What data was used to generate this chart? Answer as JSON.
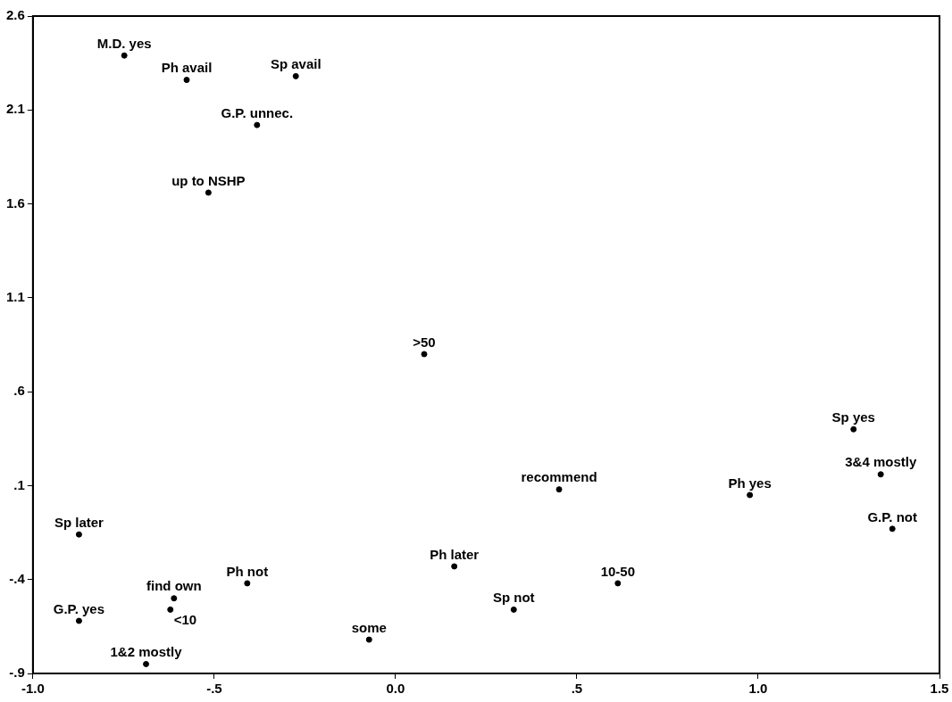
{
  "chart_data": {
    "type": "scatter",
    "color": "#000000",
    "marker": "circle",
    "grid": false,
    "legend": false,
    "x": [
      -0.748,
      -0.576,
      -0.275,
      -0.382,
      -0.516,
      0.079,
      1.263,
      1.338,
      0.451,
      0.977,
      1.37,
      -0.873,
      0.162,
      0.613,
      -0.409,
      0.326,
      -0.611,
      -0.621,
      -0.873,
      -0.073,
      -0.688
    ],
    "values": [
      2.39,
      2.26,
      2.28,
      2.02,
      1.66,
      0.8,
      0.4,
      0.16,
      0.08,
      0.05,
      -0.13,
      -0.16,
      -0.33,
      -0.42,
      -0.42,
      -0.56,
      -0.5,
      -0.56,
      -0.62,
      -0.72,
      -0.85
    ],
    "xlim": [
      -1.0,
      1.5
    ],
    "xticks": [
      {
        "value": -1.0,
        "label": "-1.0"
      },
      {
        "value": -0.5,
        "label": "-.5"
      },
      {
        "value": 0,
        "label": "0.0"
      },
      {
        "value": 0.5,
        "label": ".5"
      },
      {
        "value": 1.0,
        "label": "1.0"
      },
      {
        "value": 1.5,
        "label": "1.5"
      }
    ],
    "ylim": [
      -0.9,
      2.6
    ],
    "yticks": [
      {
        "value": -0.9,
        "label": "-.9"
      },
      {
        "value": -0.4,
        "label": "-.4"
      },
      {
        "value": 0.1,
        "label": ".1"
      },
      {
        "value": 0.6,
        "label": ".6"
      },
      {
        "value": 1.1,
        "label": "1.1"
      },
      {
        "value": 1.6,
        "label": "1.6"
      },
      {
        "value": 2.1,
        "label": "2.1"
      },
      {
        "value": 2.6,
        "label": "2.6"
      }
    ],
    "annotations": [
      {
        "text": "M.D. yes",
        "x": -0.748,
        "y": 2.39
      },
      {
        "text": "Ph avail",
        "x": -0.576,
        "y": 2.26
      },
      {
        "text": "Sp avail",
        "x": -0.275,
        "y": 2.28
      },
      {
        "text": "G.P. unnec.",
        "x": -0.382,
        "y": 2.02
      },
      {
        "text": "up to NSHP",
        "x": -0.516,
        "y": 1.66
      },
      {
        "text": ">50",
        "x": 0.079,
        "y": 0.8
      },
      {
        "text": "Sp yes",
        "x": 1.263,
        "y": 0.4
      },
      {
        "text": "3&4 mostly",
        "x": 1.338,
        "y": 0.16
      },
      {
        "text": "recommend",
        "x": 0.451,
        "y": 0.08
      },
      {
        "text": "Ph yes",
        "x": 0.977,
        "y": 0.05
      },
      {
        "text": "G.P. not",
        "x": 1.37,
        "y": -0.13
      },
      {
        "text": "Sp later",
        "x": -0.873,
        "y": -0.16
      },
      {
        "text": "Ph later",
        "x": 0.162,
        "y": -0.33
      },
      {
        "text": "10-50",
        "x": 0.613,
        "y": -0.42
      },
      {
        "text": "Ph not",
        "x": -0.409,
        "y": -0.42
      },
      {
        "text": "Sp not",
        "x": 0.326,
        "y": -0.56
      },
      {
        "text": "find own",
        "x": -0.611,
        "y": -0.5
      },
      {
        "text": "<10",
        "x": -0.621,
        "y": -0.56
      },
      {
        "text": "G.P. yes",
        "x": -0.873,
        "y": -0.62
      },
      {
        "text": "some",
        "x": -0.073,
        "y": -0.72
      },
      {
        "text": "1&2 mostly",
        "x": -0.688,
        "y": -0.85
      }
    ]
  }
}
